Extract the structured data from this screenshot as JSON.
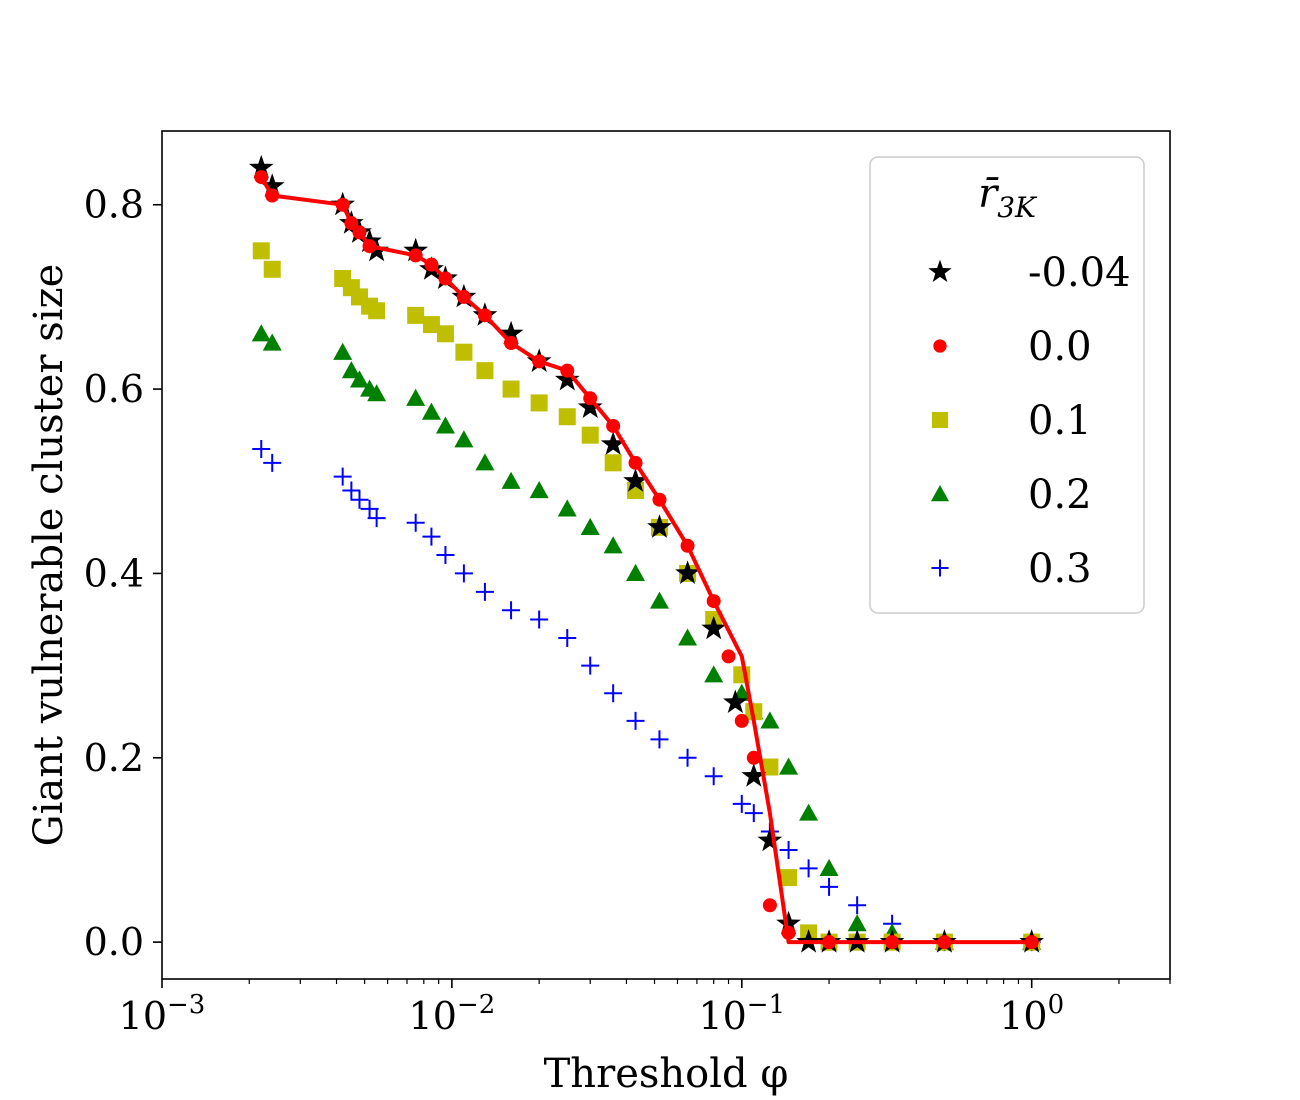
{
  "chart_data": {
    "type": "scatter",
    "title": "",
    "xlabel": "Threshold φ",
    "ylabel": "Giant vulnerable cluster size",
    "xscale": "log",
    "xlim": [
      0.001,
      3.0
    ],
    "ylim": [
      -0.04,
      0.88
    ],
    "xticks": [
      {
        "value": 0.001,
        "base": "10",
        "exp": "−3"
      },
      {
        "value": 0.01,
        "base": "10",
        "exp": "−2"
      },
      {
        "value": 0.1,
        "base": "10",
        "exp": "−1"
      },
      {
        "value": 1,
        "base": "10",
        "exp": "0"
      }
    ],
    "yticks": [
      {
        "value": 0.0,
        "label": "0.0"
      },
      {
        "value": 0.2,
        "label": "0.2"
      },
      {
        "value": 0.4,
        "label": "0.4"
      },
      {
        "value": 0.6,
        "label": "0.6"
      },
      {
        "value": 0.8,
        "label": "0.8"
      }
    ],
    "legend": {
      "title_main": "r̄",
      "title_sub": "3K",
      "position": "top-right",
      "entries": [
        {
          "label": "-0.04",
          "series": 0
        },
        {
          "label": "0.0",
          "series": 1
        },
        {
          "label": "0.1",
          "series": 2
        },
        {
          "label": "0.2",
          "series": 3
        },
        {
          "label": "0.3",
          "series": 4
        }
      ]
    },
    "series": [
      {
        "name": "-0.04",
        "color": "#000000",
        "marker": "star",
        "x": [
          0.0022,
          0.0024,
          0.0042,
          0.0045,
          0.0048,
          0.0052,
          0.0055,
          0.0075,
          0.0085,
          0.0095,
          0.011,
          0.013,
          0.016,
          0.02,
          0.025,
          0.03,
          0.036,
          0.043,
          0.052,
          0.065,
          0.08,
          0.095,
          0.11,
          0.125,
          0.145,
          0.17,
          0.2,
          0.25,
          0.33,
          0.5,
          1.0
        ],
        "y": [
          0.84,
          0.82,
          0.8,
          0.78,
          0.77,
          0.76,
          0.75,
          0.75,
          0.73,
          0.72,
          0.7,
          0.68,
          0.66,
          0.63,
          0.61,
          0.58,
          0.54,
          0.5,
          0.45,
          0.4,
          0.34,
          0.26,
          0.18,
          0.11,
          0.02,
          0.0,
          0.0,
          0.0,
          0.0,
          0.0,
          0.0
        ]
      },
      {
        "name": "0.0",
        "color": "#ff0000",
        "marker": "circle",
        "x": [
          0.0022,
          0.0024,
          0.0042,
          0.0045,
          0.0048,
          0.0052,
          0.0075,
          0.0085,
          0.0095,
          0.011,
          0.013,
          0.016,
          0.02,
          0.025,
          0.03,
          0.036,
          0.043,
          0.052,
          0.065,
          0.08,
          0.09,
          0.1,
          0.11,
          0.125,
          0.145,
          0.2,
          0.33,
          0.5,
          1.0
        ],
        "y": [
          0.83,
          0.81,
          0.8,
          0.78,
          0.77,
          0.755,
          0.745,
          0.735,
          0.72,
          0.7,
          0.68,
          0.65,
          0.63,
          0.62,
          0.59,
          0.56,
          0.52,
          0.48,
          0.43,
          0.37,
          0.31,
          0.24,
          0.2,
          0.04,
          0.01,
          0.0,
          0.0,
          0.0,
          0.0
        ]
      },
      {
        "name": "0.1",
        "color": "#bfbf00",
        "marker": "square",
        "x": [
          0.0022,
          0.0024,
          0.0042,
          0.0045,
          0.0048,
          0.0052,
          0.0055,
          0.0075,
          0.0085,
          0.0095,
          0.011,
          0.013,
          0.016,
          0.02,
          0.025,
          0.03,
          0.036,
          0.043,
          0.052,
          0.065,
          0.08,
          0.1,
          0.11,
          0.125,
          0.145,
          0.17,
          0.2,
          0.25,
          0.33,
          0.5,
          1.0
        ],
        "y": [
          0.75,
          0.73,
          0.72,
          0.71,
          0.7,
          0.69,
          0.685,
          0.68,
          0.67,
          0.66,
          0.64,
          0.62,
          0.6,
          0.585,
          0.57,
          0.55,
          0.52,
          0.49,
          0.45,
          0.4,
          0.35,
          0.29,
          0.25,
          0.19,
          0.07,
          0.01,
          0.0,
          0.0,
          0.0,
          0.0,
          0.0
        ]
      },
      {
        "name": "0.2",
        "color": "#008000",
        "marker": "triangle",
        "x": [
          0.0022,
          0.0024,
          0.0042,
          0.0045,
          0.0048,
          0.0052,
          0.0055,
          0.0075,
          0.0085,
          0.0095,
          0.011,
          0.013,
          0.016,
          0.02,
          0.025,
          0.03,
          0.036,
          0.043,
          0.052,
          0.065,
          0.08,
          0.1,
          0.11,
          0.125,
          0.145,
          0.17,
          0.2,
          0.25,
          0.33,
          0.5,
          1.0
        ],
        "y": [
          0.66,
          0.65,
          0.64,
          0.62,
          0.61,
          0.6,
          0.595,
          0.59,
          0.575,
          0.56,
          0.545,
          0.52,
          0.5,
          0.49,
          0.47,
          0.45,
          0.43,
          0.4,
          0.37,
          0.33,
          0.29,
          0.27,
          0.25,
          0.24,
          0.19,
          0.14,
          0.08,
          0.02,
          0.01,
          0.0,
          0.0
        ]
      },
      {
        "name": "0.3",
        "color": "#0000ff",
        "marker": "plus",
        "x": [
          0.0022,
          0.0024,
          0.0042,
          0.0045,
          0.0048,
          0.0052,
          0.0055,
          0.0075,
          0.0085,
          0.0095,
          0.011,
          0.013,
          0.016,
          0.02,
          0.025,
          0.03,
          0.036,
          0.043,
          0.052,
          0.065,
          0.08,
          0.1,
          0.11,
          0.125,
          0.145,
          0.17,
          0.2,
          0.25,
          0.33,
          0.5,
          1.0
        ],
        "y": [
          0.535,
          0.52,
          0.505,
          0.49,
          0.48,
          0.47,
          0.46,
          0.455,
          0.44,
          0.42,
          0.4,
          0.38,
          0.36,
          0.35,
          0.33,
          0.3,
          0.27,
          0.24,
          0.22,
          0.2,
          0.18,
          0.15,
          0.14,
          0.12,
          0.1,
          0.08,
          0.06,
          0.04,
          0.02,
          0.0,
          0.0
        ]
      }
    ],
    "fit_line": {
      "color": "#ff0000",
      "x": [
        0.0022,
        0.0024,
        0.0042,
        0.0045,
        0.0048,
        0.0052,
        0.0075,
        0.0085,
        0.0095,
        0.011,
        0.013,
        0.016,
        0.02,
        0.025,
        0.03,
        0.036,
        0.043,
        0.052,
        0.065,
        0.08,
        0.1,
        0.11,
        0.125,
        0.145,
        0.17,
        0.25,
        0.5,
        1.0
      ],
      "y": [
        0.83,
        0.81,
        0.8,
        0.78,
        0.77,
        0.755,
        0.745,
        0.735,
        0.72,
        0.7,
        0.68,
        0.65,
        0.63,
        0.62,
        0.59,
        0.56,
        0.52,
        0.48,
        0.43,
        0.37,
        0.31,
        0.24,
        0.14,
        0.0,
        0.0,
        0.0,
        0.0,
        0.0
      ]
    }
  }
}
